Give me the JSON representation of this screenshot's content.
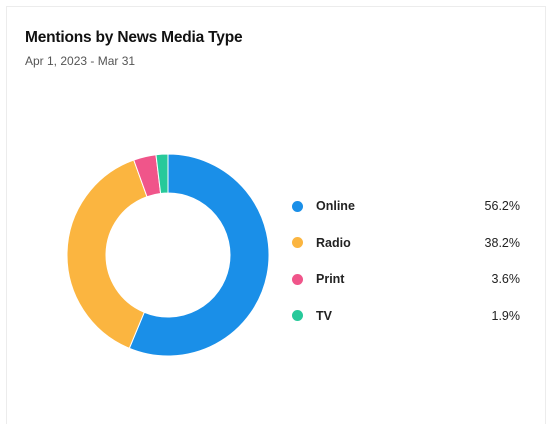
{
  "card": {
    "title": "Mentions by News Media Type",
    "subtitle": "Apr 1, 2023 - Mar 31"
  },
  "chart_data": {
    "type": "pie",
    "variant": "donut",
    "title": "Mentions by News Media Type",
    "subtitle": "Apr 1, 2023 - Mar 31",
    "legend_position": "right",
    "slices": [
      {
        "label": "Online",
        "value": 56.2,
        "display": "56.2%",
        "color": "#1a8fe8"
      },
      {
        "label": "Radio",
        "value": 38.2,
        "display": "38.2%",
        "color": "#fbb540"
      },
      {
        "label": "Print",
        "value": 3.6,
        "display": "3.6%",
        "color": "#f0558a"
      },
      {
        "label": "TV",
        "value": 1.9,
        "display": "1.9%",
        "color": "#27c99a"
      }
    ]
  }
}
